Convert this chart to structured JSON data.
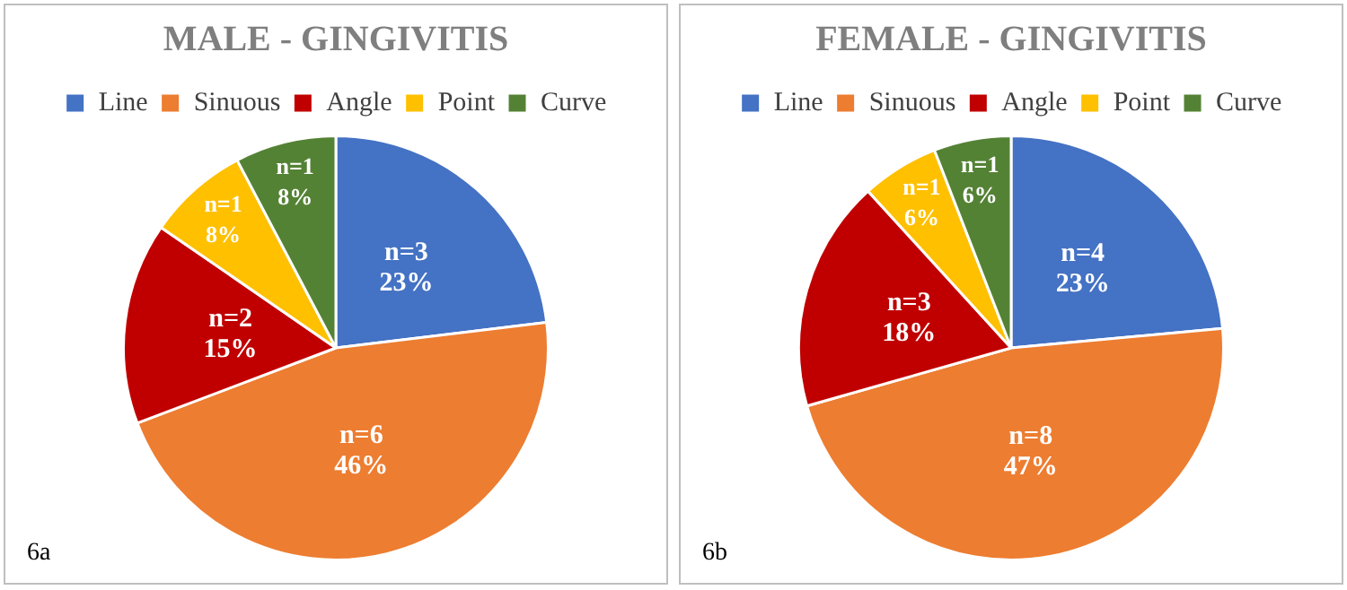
{
  "chart_data": [
    {
      "type": "pie",
      "title": "MALE - GINGIVITIS",
      "categories": [
        "Line",
        "Sinuous",
        "Angle",
        "Point",
        "Curve"
      ],
      "values": [
        3,
        6,
        2,
        1,
        1
      ],
      "colors": [
        "#4472c4",
        "#ed7d31",
        "#c00000",
        "#ffc000",
        "#548235"
      ],
      "value_labels": [
        "n=3\n23%",
        "n=6\n46%",
        "n=2\n15%",
        "n=1\n8%",
        "n=1\n8%"
      ],
      "legend": "top",
      "annotations": [
        "6a"
      ]
    },
    {
      "type": "pie",
      "title": "FEMALE - GINGIVITIS",
      "categories": [
        "Line",
        "Sinuous",
        "Angle",
        "Point",
        "Curve"
      ],
      "values": [
        4,
        8,
        3,
        1,
        1
      ],
      "colors": [
        "#4472c4",
        "#ed7d31",
        "#c00000",
        "#ffc000",
        "#548235"
      ],
      "value_labels": [
        "n=4\n23%",
        "n=8\n47%",
        "n=3\n18%",
        "n=1\n6%",
        "n=1\n6%"
      ],
      "legend": "top",
      "annotations": [
        "6b"
      ]
    }
  ]
}
